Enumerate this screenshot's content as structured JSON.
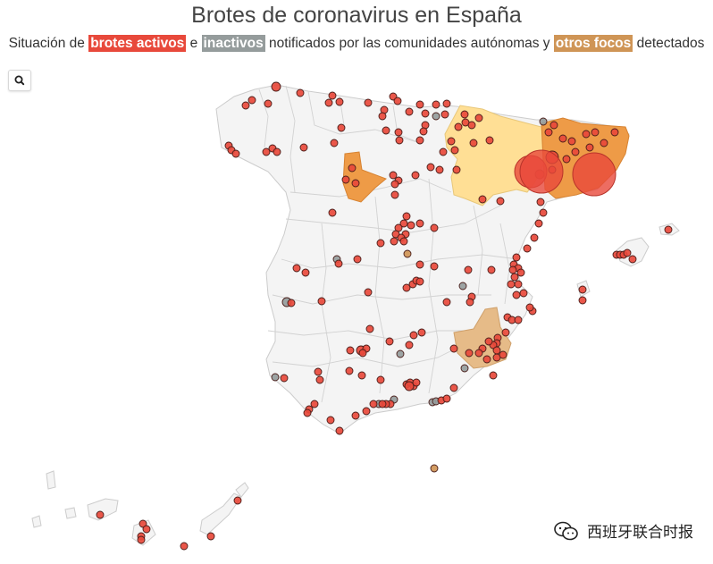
{
  "title": "Brotes de coronavirus en España",
  "subtitle": {
    "part1": "Situación de ",
    "chip_active": "brotes activos",
    "part2": " e ",
    "chip_inactive": "inactivos",
    "part3": " notificados por las comunidades autónomas y ",
    "chip_other": "otros focos",
    "part4": " detectados"
  },
  "colors": {
    "active": "#e8493b",
    "inactive": "#959c9c",
    "other": "#cf9556",
    "region_light": "#ffdf95",
    "region_mid": "#ee9b47",
    "region_murcia": "#e6bb88",
    "land": "#f4f4f4",
    "border": "#c8c8c8"
  },
  "search_icon": "search-icon",
  "watermark": {
    "icon": "wechat-icon",
    "text": "西班牙联合时报"
  }
}
